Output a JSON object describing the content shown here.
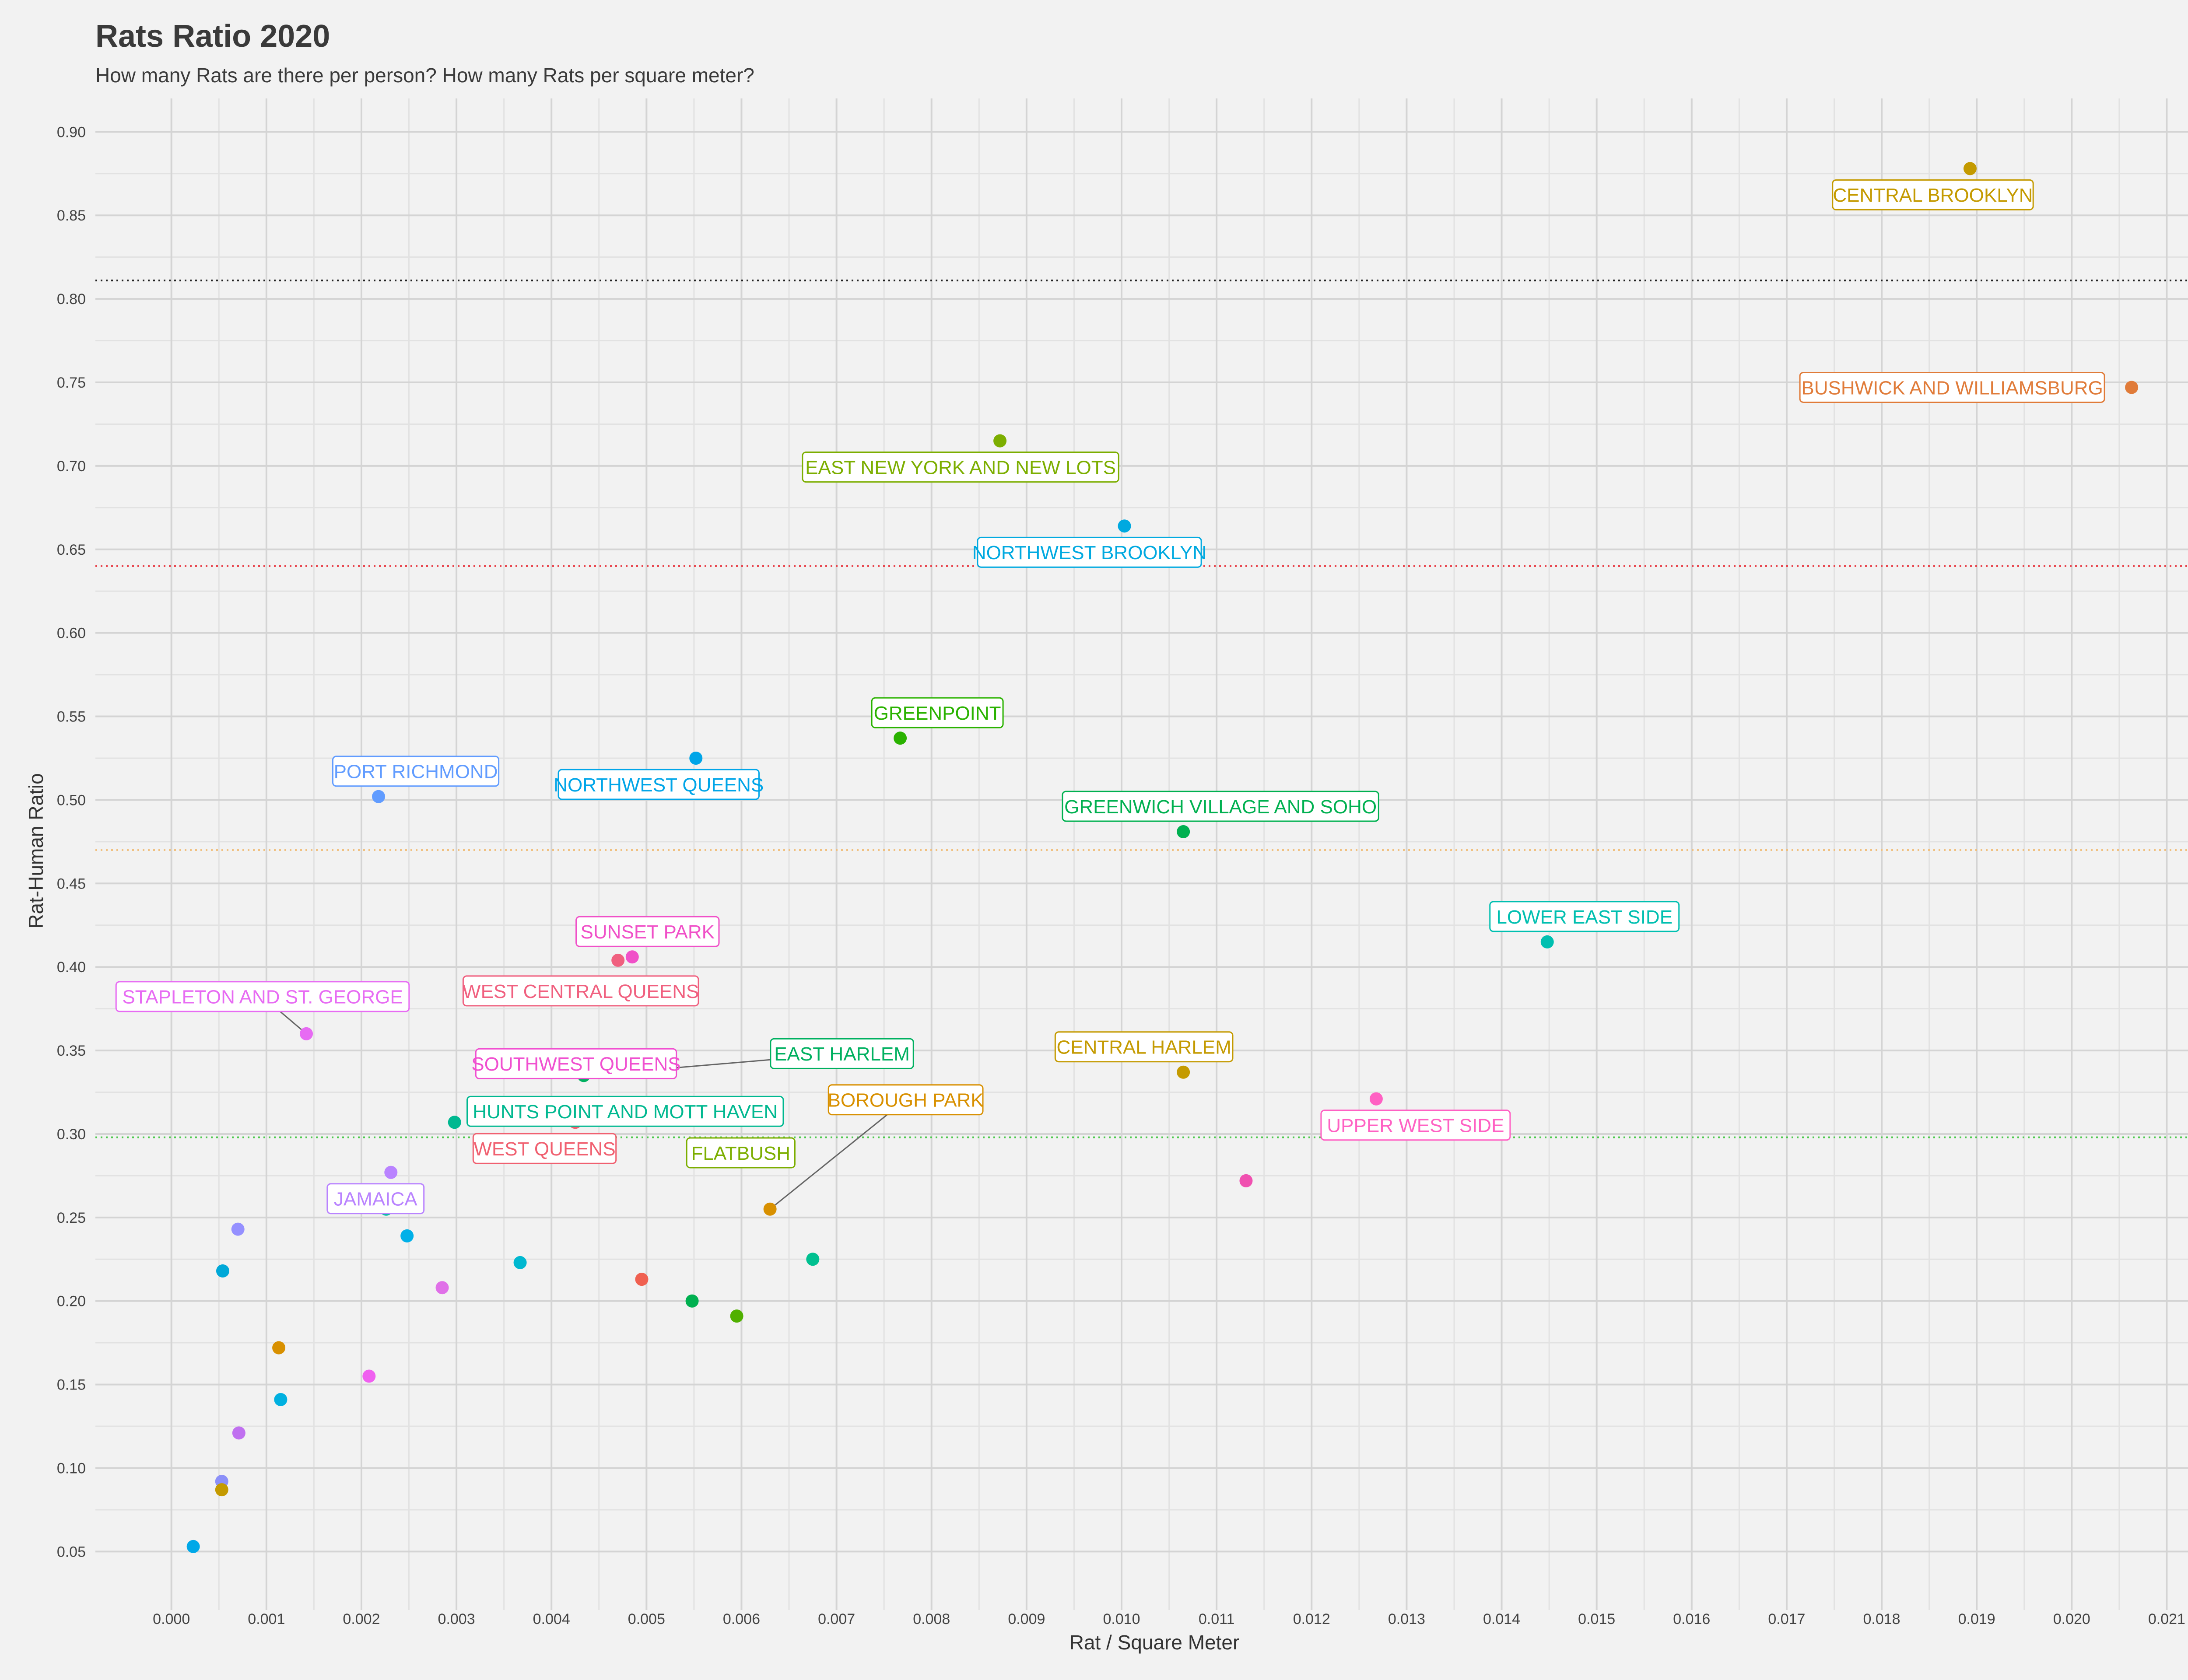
{
  "chart_data": {
    "type": "scatter",
    "title": "Rats Ratio 2020",
    "subtitle": "How many Rats are there per person? How many Rats per square meter?",
    "xlabel": "Rat / Square Meter",
    "ylabel": "Rat-Human Ratio",
    "xlim": [
      -0.0008,
      0.0215
    ],
    "ylim": [
      0.015,
      0.92
    ],
    "x_ticks": [
      0.0,
      0.001,
      0.002,
      0.003,
      0.004,
      0.005,
      0.006,
      0.007,
      0.008,
      0.009,
      0.01,
      0.011,
      0.012,
      0.013,
      0.014,
      0.015,
      0.016,
      0.017,
      0.018,
      0.019,
      0.02,
      0.021
    ],
    "x_tick_labels": [
      "0.000",
      "0.001",
      "0.002",
      "0.003",
      "0.004",
      "0.005",
      "0.006",
      "0.007",
      "0.008",
      "0.009",
      "0.010",
      "0.011",
      "0.012",
      "0.013",
      "0.014",
      "0.015",
      "0.016",
      "0.017",
      "0.018",
      "0.019",
      "0.020",
      "0.021"
    ],
    "y_ticks": [
      0.05,
      0.1,
      0.15,
      0.2,
      0.25,
      0.3,
      0.35,
      0.4,
      0.45,
      0.5,
      0.55,
      0.6,
      0.65,
      0.7,
      0.75,
      0.8,
      0.85,
      0.9
    ],
    "y_tick_labels": [
      "0.05",
      "0.10",
      "0.15",
      "0.20",
      "0.25",
      "0.30",
      "0.35",
      "0.40",
      "0.45",
      "0.50",
      "0.55",
      "0.60",
      "0.65",
      "0.70",
      "0.75",
      "0.80",
      "0.85",
      "0.90"
    ],
    "grid": true,
    "legend": "none",
    "reference_lines": [
      {
        "y": 0.811,
        "color": "#222222"
      },
      {
        "y": 0.64,
        "color": "#e8474f"
      },
      {
        "y": 0.47,
        "color": "#f0c080"
      },
      {
        "y": 0.298,
        "color": "#4ec94e"
      }
    ],
    "points": [
      {
        "x": 0.01893,
        "y": 0.878,
        "color": "#c49a00",
        "label": "CENTRAL BROOKLYN"
      },
      {
        "x": 0.02063,
        "y": 0.747,
        "color": "#e07b39",
        "label": "BUSHWICK AND WILLIAMSBURG"
      },
      {
        "x": 0.00872,
        "y": 0.715,
        "color": "#7cae00",
        "label": "EAST NEW YORK AND NEW LOTS"
      },
      {
        "x": 0.01003,
        "y": 0.664,
        "color": "#00a9e0",
        "label": "NORTHWEST BROOKLYN"
      },
      {
        "x": 0.00767,
        "y": 0.537,
        "color": "#2ab200",
        "label": "GREENPOINT"
      },
      {
        "x": 0.00552,
        "y": 0.525,
        "color": "#00a5e8",
        "label": "NORTHWEST QUEENS"
      },
      {
        "x": 0.00218,
        "y": 0.502,
        "color": "#619cff",
        "label": "PORT RICHMOND"
      },
      {
        "x": 0.01065,
        "y": 0.481,
        "color": "#00b050",
        "label": "GREENWICH VILLAGE AND SOHO"
      },
      {
        "x": 0.01448,
        "y": 0.415,
        "color": "#00bfb0",
        "label": "LOWER EAST SIDE"
      },
      {
        "x": 0.00485,
        "y": 0.406,
        "color": "#f050c8",
        "label": "SUNSET PARK"
      },
      {
        "x": 0.0047,
        "y": 0.404,
        "color": "#f0607f",
        "label": "WEST CENTRAL QUEENS"
      },
      {
        "x": 0.00142,
        "y": 0.36,
        "color": "#e76bf3",
        "label": "STAPLETON AND ST. GEORGE"
      },
      {
        "x": 0.00343,
        "y": 0.346,
        "color": "#f050d0",
        "label": "SOUTHWEST QUEENS"
      },
      {
        "x": 0.01065,
        "y": 0.337,
        "color": "#c49a00",
        "label": "CENTRAL HARLEM"
      },
      {
        "x": 0.00434,
        "y": 0.335,
        "color": "#00b060",
        "label": "EAST HARLEM"
      },
      {
        "x": 0.01268,
        "y": 0.321,
        "color": "#ff61c3",
        "label": "UPPER WEST SIDE"
      },
      {
        "x": 0.00298,
        "y": 0.307,
        "color": "#00b890",
        "label": "HUNTS POINT AND MOTT HAVEN"
      },
      {
        "x": 0.00425,
        "y": 0.307,
        "color": "#f06070",
        "label": "WEST QUEENS"
      },
      {
        "x": 0.0059,
        "y": 0.311,
        "color": "#7cae00",
        "label": "FLATBUSH"
      },
      {
        "x": 0.0063,
        "y": 0.255,
        "color": "#d89000",
        "label": "BOROUGH PARK"
      },
      {
        "x": 0.00231,
        "y": 0.277,
        "color": "#b983ff",
        "label": "JAMAICA"
      },
      {
        "x": 0.01131,
        "y": 0.272,
        "color": "#f050b0",
        "label": ""
      },
      {
        "x": 0.00226,
        "y": 0.255,
        "color": "#00c0a0",
        "label": ""
      },
      {
        "x": 0.0007,
        "y": 0.243,
        "color": "#9590ff",
        "label": ""
      },
      {
        "x": 0.00248,
        "y": 0.239,
        "color": "#00b0e8",
        "label": ""
      },
      {
        "x": 0.00675,
        "y": 0.225,
        "color": "#00c090",
        "label": ""
      },
      {
        "x": 0.00367,
        "y": 0.223,
        "color": "#00b8d0",
        "label": ""
      },
      {
        "x": 0.00054,
        "y": 0.218,
        "color": "#00a8d8",
        "label": ""
      },
      {
        "x": 0.00495,
        "y": 0.213,
        "color": "#f06050",
        "label": ""
      },
      {
        "x": 0.00285,
        "y": 0.208,
        "color": "#e070e8",
        "label": ""
      },
      {
        "x": 0.00548,
        "y": 0.2,
        "color": "#00b050",
        "label": ""
      },
      {
        "x": 0.00595,
        "y": 0.191,
        "color": "#50b000",
        "label": ""
      },
      {
        "x": 0.00113,
        "y": 0.172,
        "color": "#d89000",
        "label": ""
      },
      {
        "x": 0.00208,
        "y": 0.155,
        "color": "#f060f0",
        "label": ""
      },
      {
        "x": 0.00115,
        "y": 0.141,
        "color": "#00b0e0",
        "label": ""
      },
      {
        "x": 0.00071,
        "y": 0.121,
        "color": "#c070f0",
        "label": ""
      },
      {
        "x": 0.00053,
        "y": 0.092,
        "color": "#8c90f8",
        "label": ""
      },
      {
        "x": 0.00053,
        "y": 0.087,
        "color": "#c49a00",
        "label": ""
      },
      {
        "x": 0.00023,
        "y": 0.053,
        "color": "#00a8e8",
        "label": ""
      }
    ]
  }
}
